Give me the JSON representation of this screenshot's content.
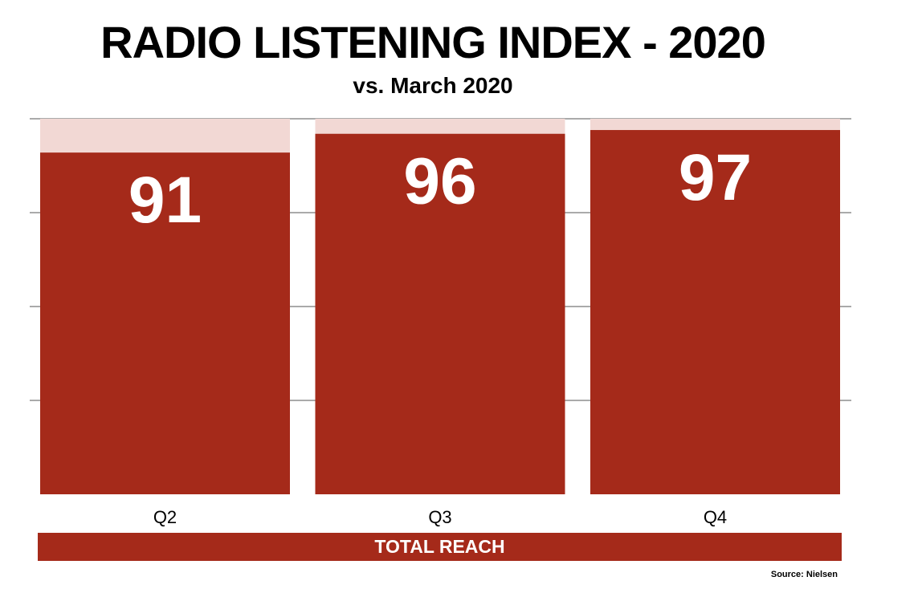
{
  "colors": {
    "bar": "#a52a1a",
    "remainder": "#f2d8d4",
    "value_label": "#ffffff",
    "gridline": "#555555"
  },
  "chart_data": {
    "type": "bar",
    "title": "RADIO LISTENING INDEX - 2020",
    "subtitle": "vs. March 2020",
    "categories": [
      "Q2",
      "Q3",
      "Q4"
    ],
    "series": [
      {
        "values": [
          91,
          96,
          97
        ]
      }
    ],
    "ylim": [
      0,
      100
    ],
    "grid": true,
    "y_ticks_shown": false,
    "group_label": "TOTAL REACH",
    "source": "Source: Nielsen"
  }
}
